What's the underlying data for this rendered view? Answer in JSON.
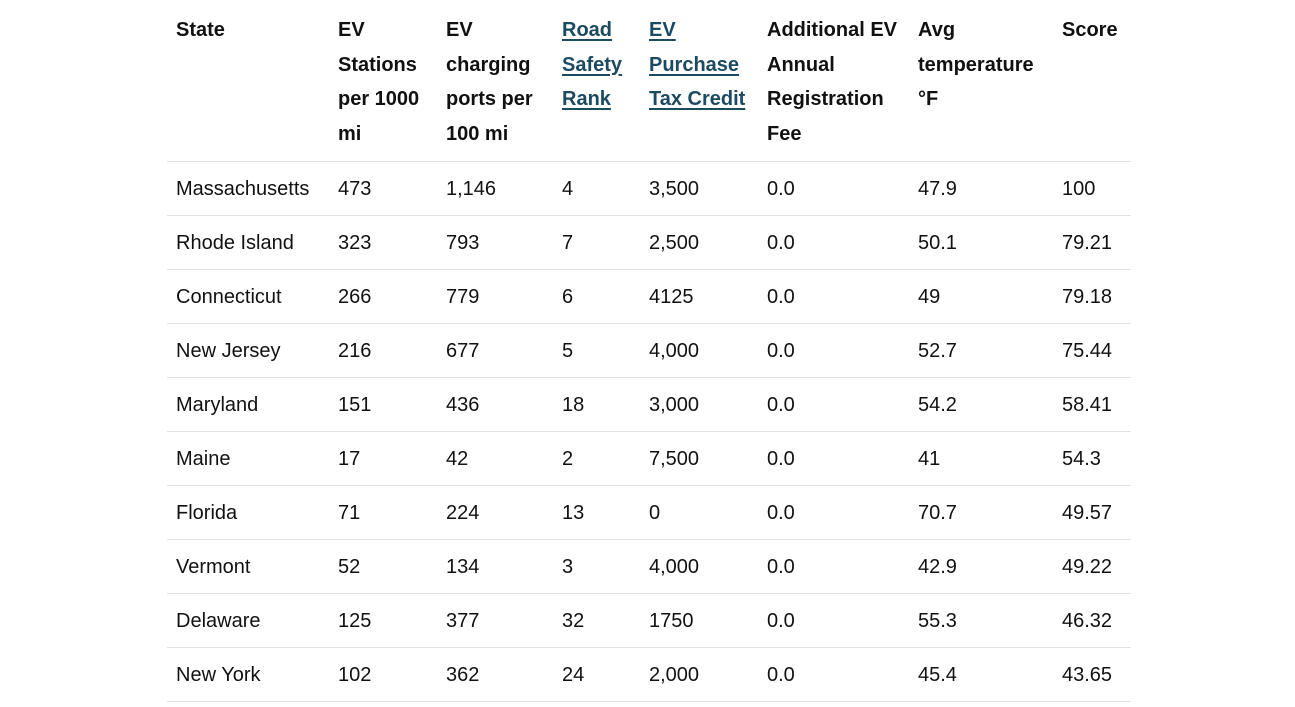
{
  "table": {
    "headers": [
      {
        "label": "State",
        "link": false
      },
      {
        "label": "EV Stations per 1000 mi",
        "link": false
      },
      {
        "label": "EV charging ports per 100 mi",
        "link": false
      },
      {
        "label": "Road Safety Rank",
        "link": true
      },
      {
        "label": "EV Purchase Tax Credit",
        "link": true
      },
      {
        "label": "Additional EV Annual Registration Fee",
        "link": false
      },
      {
        "label": "Avg temperature °F",
        "link": false
      },
      {
        "label": "Score",
        "link": false
      }
    ],
    "rows": [
      [
        "Massachusetts",
        "473",
        "1,146",
        "4",
        "3,500",
        "0.0",
        "47.9",
        "100"
      ],
      [
        "Rhode Island",
        "323",
        "793",
        "7",
        "2,500",
        "0.0",
        "50.1",
        "79.21"
      ],
      [
        "Connecticut",
        "266",
        "779",
        "6",
        "4125",
        "0.0",
        "49",
        "79.18"
      ],
      [
        "New Jersey",
        "216",
        "677",
        "5",
        "4,000",
        "0.0",
        "52.7",
        "75.44"
      ],
      [
        "Maryland",
        "151",
        "436",
        "18",
        "3,000",
        "0.0",
        "54.2",
        "58.41"
      ],
      [
        "Maine",
        "17",
        "42",
        "2",
        "7,500",
        "0.0",
        "41",
        "54.3"
      ],
      [
        "Florida",
        "71",
        "224",
        "13",
        "0",
        "0.0",
        "70.7",
        "49.57"
      ],
      [
        "Vermont",
        "52",
        "134",
        "3",
        "4,000",
        "0.0",
        "42.9",
        "49.22"
      ],
      [
        "Delaware",
        "125",
        "377",
        "32",
        "1750",
        "0.0",
        "55.3",
        "46.32"
      ],
      [
        "New York",
        "102",
        "362",
        "24",
        "2,000",
        "0.0",
        "45.4",
        "43.65"
      ]
    ]
  },
  "colors": {
    "link": "#1c4a60",
    "text": "#111111",
    "divider": "#e2e2e2"
  }
}
